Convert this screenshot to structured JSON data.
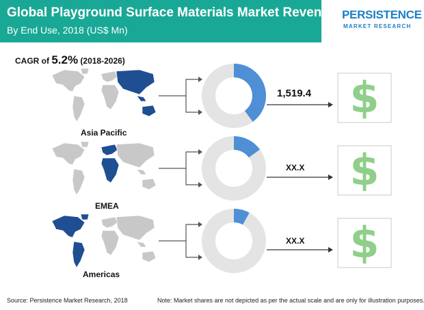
{
  "header": {
    "title": "Global Playground Surface Materials Market Revenue",
    "subtitle": "By End Use, 2018 (US$ Mn)"
  },
  "logo": {
    "main": "PERSISTENCE",
    "sub": "MARKET RESEARCH"
  },
  "cagr": {
    "prefix": "CAGR of ",
    "value": "5.2%",
    "period": " (2018-2026)"
  },
  "colors": {
    "brand_teal": "#19a896",
    "segment_blue": "#4e8fd6",
    "donut_gray": "#e4e4e4",
    "map_gray": "#c8c8c8",
    "map_highlight": "#1f4e92",
    "dollar_green": "#8fcf8a"
  },
  "chart_data": {
    "type": "pie",
    "title": "Global Playground Surface Materials Market Revenue",
    "subtitle": "By End Use, 2018 (US$ Mn)",
    "variant": "donut",
    "categories": [
      "Asia Pacific",
      "EMEA",
      "Americas"
    ],
    "share_fractions": [
      0.4,
      0.15,
      0.08
    ],
    "value_labels": [
      "1,519.4",
      "XX.X",
      "XX.X"
    ]
  },
  "icons": {
    "maps": [
      "world-map-asia-pacific-icon",
      "world-map-emea-icon",
      "world-map-americas-icon"
    ],
    "dollar": "dollar-sign-icon"
  },
  "footer": {
    "source": "Source: Persistence Market Research, 2018",
    "note": "Note: Market shares are not depicted as per the actual scale and are only for illustration purposes."
  }
}
